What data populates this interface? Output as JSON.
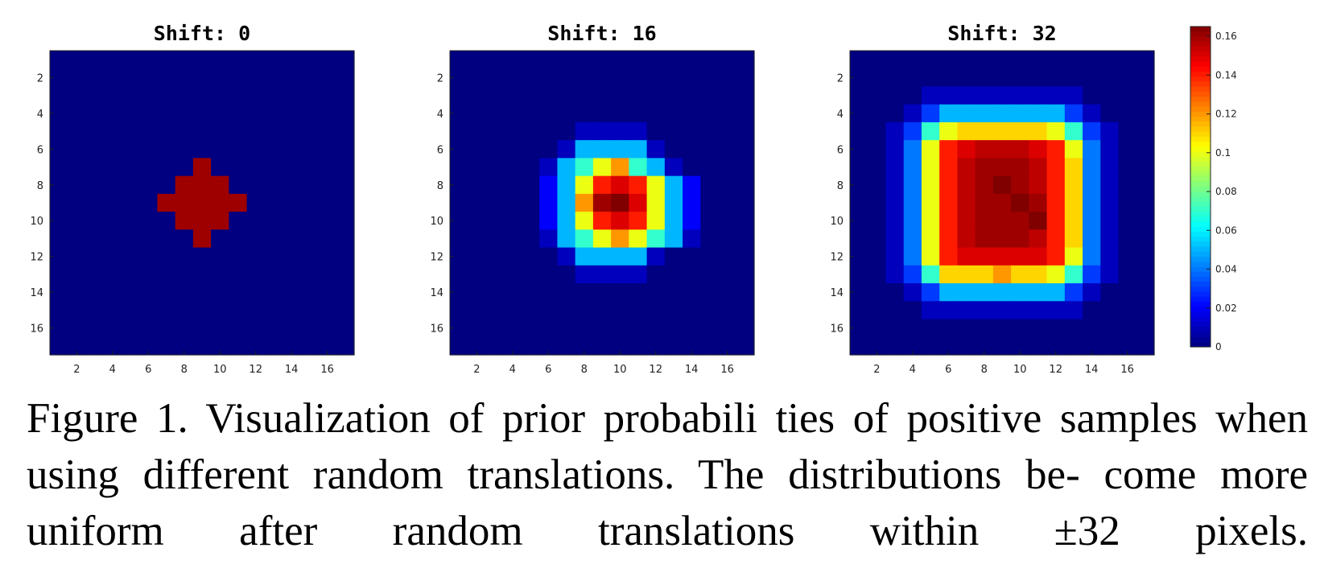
{
  "chart_data": {
    "type": "heatmap",
    "grid_size": 17,
    "x_ticks": [
      2,
      4,
      6,
      8,
      10,
      12,
      14,
      16
    ],
    "y_ticks": [
      2,
      4,
      6,
      8,
      10,
      12,
      14,
      16
    ],
    "color_scale": {
      "colormap": "jet",
      "min": 0,
      "max": 0.165,
      "ticks": [
        0,
        0.02,
        0.04,
        0.06,
        0.08,
        0.1,
        0.12,
        0.14,
        0.16
      ],
      "tick_labels": [
        "0",
        "0.02",
        "0.04",
        "0.06",
        "0.08",
        "0.1",
        "0.12",
        "0.14",
        "0.16"
      ]
    },
    "panels": [
      {
        "title": "Shift: 0",
        "values": [
          [
            0,
            0,
            0,
            0,
            0,
            0,
            0,
            0,
            0,
            0,
            0,
            0,
            0,
            0,
            0,
            0,
            0
          ],
          [
            0,
            0,
            0,
            0,
            0,
            0,
            0,
            0,
            0,
            0,
            0,
            0,
            0,
            0,
            0,
            0,
            0
          ],
          [
            0,
            0,
            0,
            0,
            0,
            0,
            0,
            0,
            0,
            0,
            0,
            0,
            0,
            0,
            0,
            0,
            0
          ],
          [
            0,
            0,
            0,
            0,
            0,
            0,
            0,
            0,
            0,
            0,
            0,
            0,
            0,
            0,
            0,
            0,
            0
          ],
          [
            0,
            0,
            0,
            0,
            0,
            0,
            0,
            0,
            0,
            0,
            0,
            0,
            0,
            0,
            0,
            0,
            0
          ],
          [
            0,
            0,
            0,
            0,
            0,
            0,
            0,
            0,
            0,
            0,
            0,
            0,
            0,
            0,
            0,
            0,
            0
          ],
          [
            0,
            0,
            0,
            0,
            0,
            0,
            0,
            0,
            0.16,
            0,
            0,
            0,
            0,
            0,
            0,
            0,
            0
          ],
          [
            0,
            0,
            0,
            0,
            0,
            0,
            0,
            0.16,
            0.16,
            0.16,
            0,
            0,
            0,
            0,
            0,
            0,
            0
          ],
          [
            0,
            0,
            0,
            0,
            0,
            0,
            0.16,
            0.16,
            0.16,
            0.16,
            0.16,
            0,
            0,
            0,
            0,
            0,
            0
          ],
          [
            0,
            0,
            0,
            0,
            0,
            0,
            0,
            0.16,
            0.16,
            0.16,
            0,
            0,
            0,
            0,
            0,
            0,
            0
          ],
          [
            0,
            0,
            0,
            0,
            0,
            0,
            0,
            0,
            0.16,
            0,
            0,
            0,
            0,
            0,
            0,
            0,
            0
          ],
          [
            0,
            0,
            0,
            0,
            0,
            0,
            0,
            0,
            0,
            0,
            0,
            0,
            0,
            0,
            0,
            0,
            0
          ],
          [
            0,
            0,
            0,
            0,
            0,
            0,
            0,
            0,
            0,
            0,
            0,
            0,
            0,
            0,
            0,
            0,
            0
          ],
          [
            0,
            0,
            0,
            0,
            0,
            0,
            0,
            0,
            0,
            0,
            0,
            0,
            0,
            0,
            0,
            0,
            0
          ],
          [
            0,
            0,
            0,
            0,
            0,
            0,
            0,
            0,
            0,
            0,
            0,
            0,
            0,
            0,
            0,
            0,
            0
          ],
          [
            0,
            0,
            0,
            0,
            0,
            0,
            0,
            0,
            0,
            0,
            0,
            0,
            0,
            0,
            0,
            0,
            0
          ],
          [
            0,
            0,
            0,
            0,
            0,
            0,
            0,
            0,
            0,
            0,
            0,
            0,
            0,
            0,
            0,
            0,
            0
          ]
        ]
      },
      {
        "title": "Shift: 16",
        "values": [
          [
            0,
            0,
            0,
            0,
            0,
            0,
            0,
            0,
            0,
            0,
            0,
            0,
            0,
            0,
            0,
            0,
            0
          ],
          [
            0,
            0,
            0,
            0,
            0,
            0,
            0,
            0,
            0,
            0,
            0,
            0,
            0,
            0,
            0,
            0,
            0
          ],
          [
            0,
            0,
            0,
            0,
            0,
            0,
            0,
            0,
            0,
            0,
            0,
            0,
            0,
            0,
            0,
            0,
            0
          ],
          [
            0,
            0,
            0,
            0,
            0,
            0,
            0,
            0,
            0,
            0,
            0,
            0,
            0,
            0,
            0,
            0,
            0
          ],
          [
            0,
            0,
            0,
            0,
            0,
            0,
            0,
            0.01,
            0.01,
            0.01,
            0.01,
            0,
            0,
            0,
            0,
            0,
            0
          ],
          [
            0,
            0,
            0,
            0,
            0,
            0,
            0.01,
            0.05,
            0.05,
            0.05,
            0.05,
            0.01,
            0,
            0,
            0,
            0,
            0
          ],
          [
            0,
            0,
            0,
            0,
            0,
            0.01,
            0.05,
            0.07,
            0.1,
            0.12,
            0.07,
            0.05,
            0.01,
            0,
            0,
            0,
            0
          ],
          [
            0,
            0,
            0,
            0,
            0,
            0.02,
            0.05,
            0.1,
            0.14,
            0.15,
            0.14,
            0.1,
            0.05,
            0.02,
            0,
            0,
            0
          ],
          [
            0,
            0,
            0,
            0,
            0,
            0.02,
            0.05,
            0.12,
            0.16,
            0.165,
            0.15,
            0.1,
            0.05,
            0.02,
            0,
            0,
            0
          ],
          [
            0,
            0,
            0,
            0,
            0,
            0.02,
            0.05,
            0.1,
            0.14,
            0.15,
            0.14,
            0.1,
            0.05,
            0.02,
            0,
            0,
            0
          ],
          [
            0,
            0,
            0,
            0,
            0,
            0.01,
            0.05,
            0.07,
            0.1,
            0.12,
            0.1,
            0.07,
            0.05,
            0.01,
            0,
            0,
            0
          ],
          [
            0,
            0,
            0,
            0,
            0,
            0,
            0.01,
            0.05,
            0.05,
            0.05,
            0.05,
            0.01,
            0,
            0,
            0,
            0,
            0
          ],
          [
            0,
            0,
            0,
            0,
            0,
            0,
            0,
            0.01,
            0.01,
            0.01,
            0.01,
            0,
            0,
            0,
            0,
            0,
            0
          ],
          [
            0,
            0,
            0,
            0,
            0,
            0,
            0,
            0,
            0,
            0,
            0,
            0,
            0,
            0,
            0,
            0,
            0
          ],
          [
            0,
            0,
            0,
            0,
            0,
            0,
            0,
            0,
            0,
            0,
            0,
            0,
            0,
            0,
            0,
            0,
            0
          ],
          [
            0,
            0,
            0,
            0,
            0,
            0,
            0,
            0,
            0,
            0,
            0,
            0,
            0,
            0,
            0,
            0,
            0
          ],
          [
            0,
            0,
            0,
            0,
            0,
            0,
            0,
            0,
            0,
            0,
            0,
            0,
            0,
            0,
            0,
            0,
            0
          ]
        ]
      },
      {
        "title": "Shift: 32",
        "values": [
          [
            0,
            0,
            0,
            0,
            0,
            0,
            0,
            0,
            0,
            0,
            0,
            0,
            0,
            0,
            0,
            0,
            0
          ],
          [
            0,
            0,
            0,
            0,
            0,
            0,
            0,
            0,
            0,
            0,
            0,
            0,
            0,
            0,
            0,
            0,
            0
          ],
          [
            0,
            0,
            0,
            0,
            0.01,
            0.01,
            0.01,
            0.01,
            0.01,
            0.01,
            0.01,
            0.01,
            0.01,
            0,
            0,
            0,
            0
          ],
          [
            0,
            0,
            0,
            0.01,
            0.03,
            0.05,
            0.05,
            0.05,
            0.05,
            0.05,
            0.05,
            0.05,
            0.03,
            0.01,
            0,
            0,
            0
          ],
          [
            0,
            0,
            0.01,
            0.03,
            0.07,
            0.1,
            0.11,
            0.11,
            0.11,
            0.11,
            0.11,
            0.1,
            0.07,
            0.03,
            0.01,
            0,
            0
          ],
          [
            0,
            0,
            0.01,
            0.04,
            0.1,
            0.14,
            0.15,
            0.155,
            0.155,
            0.155,
            0.15,
            0.14,
            0.1,
            0.04,
            0.01,
            0,
            0
          ],
          [
            0,
            0,
            0.01,
            0.04,
            0.1,
            0.14,
            0.155,
            0.16,
            0.16,
            0.16,
            0.155,
            0.14,
            0.11,
            0.04,
            0.01,
            0,
            0
          ],
          [
            0,
            0,
            0.01,
            0.04,
            0.1,
            0.14,
            0.155,
            0.16,
            0.165,
            0.16,
            0.155,
            0.14,
            0.11,
            0.04,
            0.01,
            0,
            0
          ],
          [
            0,
            0,
            0.01,
            0.04,
            0.1,
            0.14,
            0.155,
            0.16,
            0.16,
            0.165,
            0.16,
            0.14,
            0.11,
            0.04,
            0.01,
            0,
            0
          ],
          [
            0,
            0,
            0.01,
            0.04,
            0.1,
            0.14,
            0.155,
            0.16,
            0.16,
            0.16,
            0.165,
            0.14,
            0.11,
            0.04,
            0.01,
            0,
            0
          ],
          [
            0,
            0,
            0.01,
            0.04,
            0.1,
            0.14,
            0.155,
            0.16,
            0.16,
            0.16,
            0.155,
            0.14,
            0.11,
            0.04,
            0.01,
            0,
            0
          ],
          [
            0,
            0,
            0.01,
            0.04,
            0.1,
            0.14,
            0.15,
            0.15,
            0.15,
            0.15,
            0.15,
            0.14,
            0.1,
            0.04,
            0.01,
            0,
            0
          ],
          [
            0,
            0,
            0.01,
            0.03,
            0.07,
            0.11,
            0.11,
            0.11,
            0.12,
            0.11,
            0.11,
            0.1,
            0.07,
            0.03,
            0.01,
            0,
            0
          ],
          [
            0,
            0,
            0,
            0.01,
            0.03,
            0.05,
            0.05,
            0.05,
            0.05,
            0.05,
            0.05,
            0.05,
            0.03,
            0.01,
            0,
            0,
            0
          ],
          [
            0,
            0,
            0,
            0,
            0.01,
            0.01,
            0.01,
            0.01,
            0.01,
            0.01,
            0.01,
            0.01,
            0.01,
            0,
            0,
            0,
            0
          ],
          [
            0,
            0,
            0,
            0,
            0,
            0,
            0,
            0,
            0,
            0,
            0,
            0,
            0,
            0,
            0,
            0,
            0
          ],
          [
            0,
            0,
            0,
            0,
            0,
            0,
            0,
            0,
            0,
            0,
            0,
            0,
            0,
            0,
            0,
            0,
            0
          ]
        ]
      }
    ]
  },
  "caption": "Figure 1. Visualization of prior probabili ties of positive samples when using different random translations. The distributions be- come more uniform after random translations within ±32 pixels."
}
